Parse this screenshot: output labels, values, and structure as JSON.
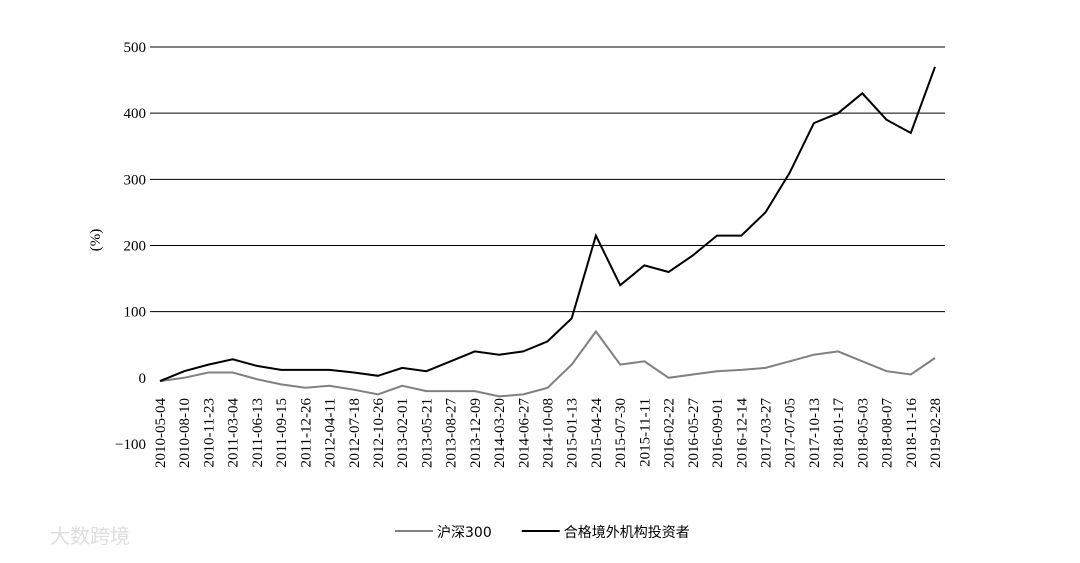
{
  "chart_data": {
    "type": "line",
    "y_label": "(%)",
    "watermark": "大数跨境",
    "categories": [
      "2010-05-04",
      "2010-08-10",
      "2010-11-23",
      "2011-03-04",
      "2011-06-13",
      "2011-09-15",
      "2011-12-26",
      "2012-04-11",
      "2012-07-18",
      "2012-10-26",
      "2013-02-01",
      "2013-05-21",
      "2013-08-27",
      "2013-12-09",
      "2014-03-20",
      "2014-06-27",
      "2014-10-08",
      "2015-01-13",
      "2015-04-24",
      "2015-07-30",
      "2015-11-11",
      "2016-02-22",
      "2016-05-27",
      "2016-09-01",
      "2016-12-14",
      "2017-03-27",
      "2017-07-05",
      "2017-10-13",
      "2018-01-17",
      "2018-05-03",
      "2018-08-07",
      "2018-11-16",
      "2019-02-28"
    ],
    "series": [
      {
        "name": "沪深300",
        "color": "#808080",
        "values": [
          -5,
          0,
          8,
          8,
          -2,
          -10,
          -15,
          -12,
          -18,
          -25,
          -12,
          -20,
          -20,
          -20,
          -28,
          -25,
          -15,
          20,
          70,
          20,
          25,
          0,
          5,
          10,
          12,
          15,
          25,
          35,
          40,
          25,
          10,
          5,
          30
        ]
      },
      {
        "name": "合格境外机构投资者",
        "color": "#000000",
        "values": [
          -5,
          10,
          20,
          28,
          18,
          12,
          12,
          12,
          8,
          3,
          15,
          10,
          25,
          40,
          35,
          40,
          55,
          90,
          215,
          140,
          170,
          160,
          185,
          215,
          215,
          250,
          310,
          385,
          400,
          430,
          390,
          370,
          470
        ]
      }
    ],
    "ylim": [
      -100,
      500
    ],
    "yticks": [
      {
        "value": -100,
        "label": "−100"
      },
      0,
      100,
      200,
      300,
      400,
      500
    ],
    "grid": true,
    "legend": "bottom"
  }
}
